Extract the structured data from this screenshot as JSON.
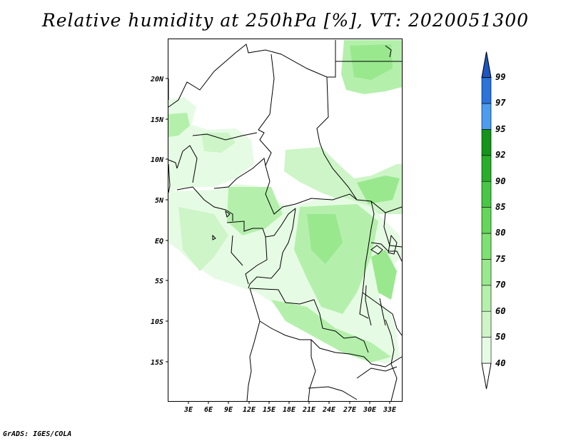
{
  "title": "Relative humidity at 250hPa [%], VT: 2020051300",
  "credit": "GrADS: IGES/COLA",
  "map": {
    "lon_ticks": [
      "3E",
      "6E",
      "9E",
      "12E",
      "15E",
      "18E",
      "21E",
      "24E",
      "27E",
      "30E",
      "33E"
    ],
    "lat_ticks": [
      "20N",
      "15N",
      "10N",
      "5N",
      "EQ",
      "5S",
      "10S",
      "15S"
    ],
    "lon_range": [
      0,
      35
    ],
    "lat_range": [
      -20,
      25
    ]
  },
  "colorbar": {
    "levels": [
      "40",
      "50",
      "60",
      "70",
      "75",
      "80",
      "85",
      "90",
      "92",
      "95",
      "97",
      "99"
    ],
    "colors": [
      "#ffffff",
      "#e6fbe4",
      "#cdf5c7",
      "#b4f0ab",
      "#99e88e",
      "#7fe173",
      "#64d65a",
      "#48c646",
      "#2aad2a",
      "#14941b",
      "#4c9cf0",
      "#2a74da",
      "#1e56c2"
    ]
  }
}
